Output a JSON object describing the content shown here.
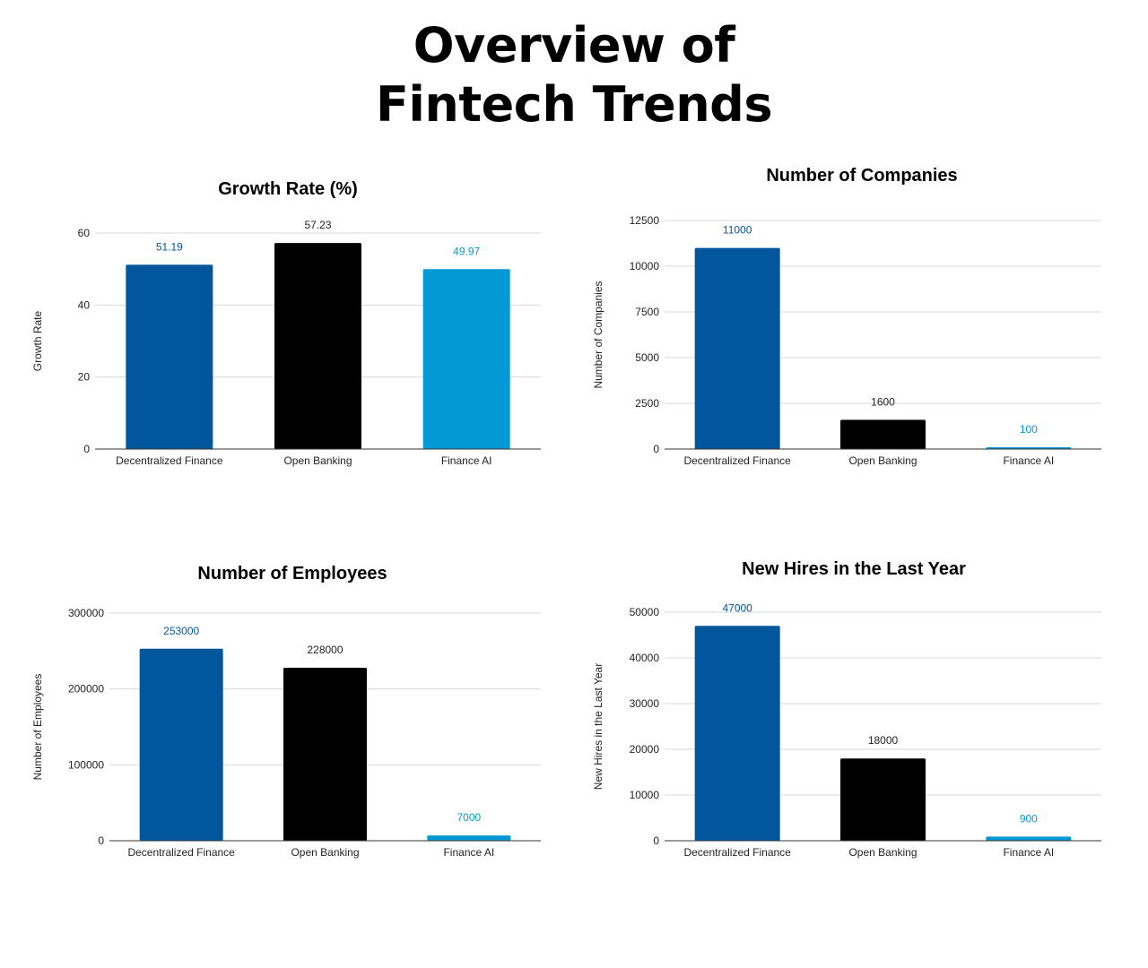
{
  "page": {
    "title_line1": "Overview of",
    "title_line2": "Fintech Trends"
  },
  "colors": {
    "decentralized_finance": "#02569b",
    "open_banking": "#000000",
    "finance_ai": "#0399d6",
    "gridline": "#d9d9d9"
  },
  "chart_data": [
    {
      "id": "growth-rate",
      "type": "bar",
      "title": "Growth Rate (%)",
      "xlabel": "",
      "ylabel": "Growth Rate",
      "categories": [
        "Decentralized Finance",
        "Open Banking",
        "Finance AI"
      ],
      "values": [
        51.19,
        57.23,
        49.97
      ],
      "data_labels": [
        "51.19",
        "57.23",
        "49.97"
      ],
      "ylim": [
        0,
        60
      ],
      "yticks": [
        0,
        20,
        40,
        60
      ],
      "grid": true,
      "legend": "none"
    },
    {
      "id": "number-of-companies",
      "type": "bar",
      "title": "Number of Companies",
      "xlabel": "",
      "ylabel": "Number of Companies",
      "categories": [
        "Decentralized Finance",
        "Open Banking",
        "Finance AI"
      ],
      "values": [
        11000,
        1600,
        100
      ],
      "data_labels": [
        "11000",
        "1600",
        "100"
      ],
      "ylim": [
        0,
        12500
      ],
      "yticks": [
        0,
        2500,
        5000,
        7500,
        10000,
        12500
      ],
      "grid": true,
      "legend": "none"
    },
    {
      "id": "number-of-employees",
      "type": "bar",
      "title": "Number of Employees",
      "xlabel": "",
      "ylabel": "Number of Employees",
      "categories": [
        "Decentralized Finance",
        "Open Banking",
        "Finance AI"
      ],
      "values": [
        253000,
        228000,
        7000
      ],
      "data_labels": [
        "253000",
        "228000",
        "7000"
      ],
      "ylim": [
        0,
        300000
      ],
      "yticks": [
        0,
        100000,
        200000,
        300000
      ],
      "grid": true,
      "legend": "none"
    },
    {
      "id": "new-hires",
      "type": "bar",
      "title": "New Hires in the Last Year",
      "xlabel": "",
      "ylabel": "New Hires in the Last Year",
      "categories": [
        "Decentralized Finance",
        "Open Banking",
        "Finance AI"
      ],
      "values": [
        47000,
        18000,
        900
      ],
      "data_labels": [
        "47000",
        "18000",
        "900"
      ],
      "ylim": [
        0,
        50000
      ],
      "yticks": [
        0,
        10000,
        20000,
        30000,
        40000,
        50000
      ],
      "grid": true,
      "legend": "none"
    }
  ]
}
